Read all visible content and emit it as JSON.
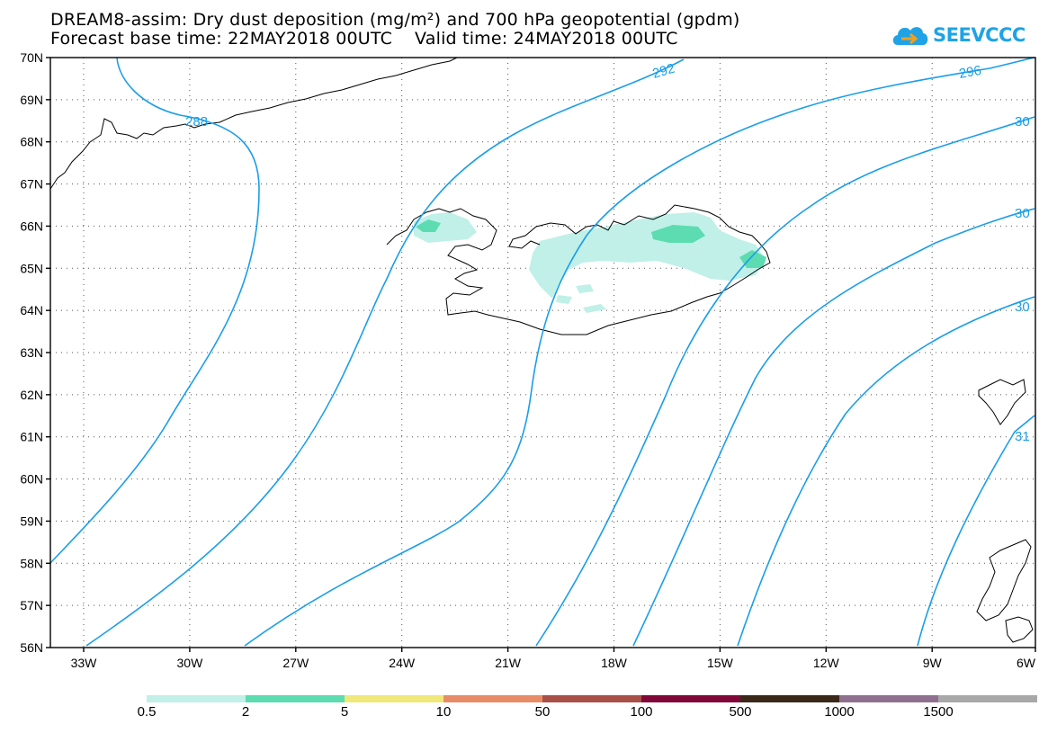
{
  "title": {
    "line1": "DREAM8-assim: Dry dust deposition (mg/m²) and 700 hPa geopotential (gpdm)",
    "line2": "Forecast base time: 22MAY2018 00UTC    Valid time: 24MAY2018 00UTC"
  },
  "logo": {
    "text": "SEEVCCC",
    "icon": "cloud-icon",
    "color": "#1fa3e6"
  },
  "map": {
    "lat_labels": [
      "70N",
      "69N",
      "68N",
      "67N",
      "66N",
      "65N",
      "64N",
      "63N",
      "62N",
      "61N",
      "60N",
      "59N",
      "58N",
      "57N",
      "56N"
    ],
    "lon_labels": [
      "33W",
      "30W",
      "27W",
      "24W",
      "21W",
      "18W",
      "15W",
      "12W",
      "9W",
      "6W"
    ],
    "contour_color": "#1a9ee8",
    "contour_labels": [
      "288",
      "292",
      "296",
      "30",
      "30",
      "30",
      "31"
    ]
  },
  "legend": {
    "colors": [
      "#c0f0e8",
      "#5cdcb0",
      "#f0e878",
      "#e88c68",
      "#a85048",
      "#800838",
      "#3c2818",
      "#907090",
      "#a8a8a8"
    ],
    "labels": [
      "0.5",
      "2",
      "5",
      "10",
      "50",
      "100",
      "500",
      "1000",
      "1500"
    ]
  }
}
